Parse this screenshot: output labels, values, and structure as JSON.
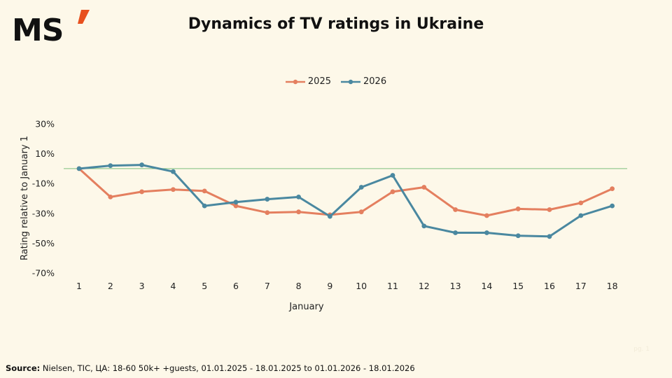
{
  "brand": {
    "logo_text": "MS",
    "logo_accent_color": "#e8501e"
  },
  "title": "Dynamics of TV ratings in Ukraine",
  "source": {
    "label": "Source:",
    "text": " Nielsen, TIC, ЦА: 18-60 50k+ +guests, 01.01.2025 - 18.01.2025 to 01.01.2026 - 18.01.2026"
  },
  "page_number": "pg. 1",
  "chart_data": {
    "type": "line",
    "title": "Dynamics of TV ratings in Ukraine",
    "xlabel": "January",
    "ylabel": "Rating relative to January 1",
    "x": [
      1,
      2,
      3,
      4,
      5,
      6,
      7,
      8,
      9,
      10,
      11,
      12,
      13,
      14,
      15,
      16,
      17,
      18
    ],
    "ylim": [
      -70,
      30
    ],
    "yticks": [
      30,
      10,
      -10,
      -30,
      -50,
      -70
    ],
    "ytick_labels": [
      "30%",
      "10%",
      "-10%",
      "-30%",
      "-50%",
      "-70%"
    ],
    "reference_line": {
      "y": 0,
      "color": "#7dbf7d"
    },
    "grid": false,
    "legend_position": "top-center",
    "series": [
      {
        "name": "2025",
        "color": "#e47f5f",
        "values": [
          0,
          -19,
          -15.5,
          -14,
          -15,
          -25,
          -29.5,
          -29,
          -31,
          -29,
          -15.5,
          -12.5,
          -27.5,
          -31.5,
          -27,
          -27.5,
          -23,
          -13.5
        ]
      },
      {
        "name": "2026",
        "color": "#4a88a0",
        "values": [
          0,
          2,
          2.5,
          -2,
          -25,
          -22.5,
          -20.5,
          -19,
          -32,
          -12.5,
          -4.5,
          -38.5,
          -43,
          -43,
          -45,
          -45.5,
          -31.5,
          -25
        ]
      }
    ]
  }
}
